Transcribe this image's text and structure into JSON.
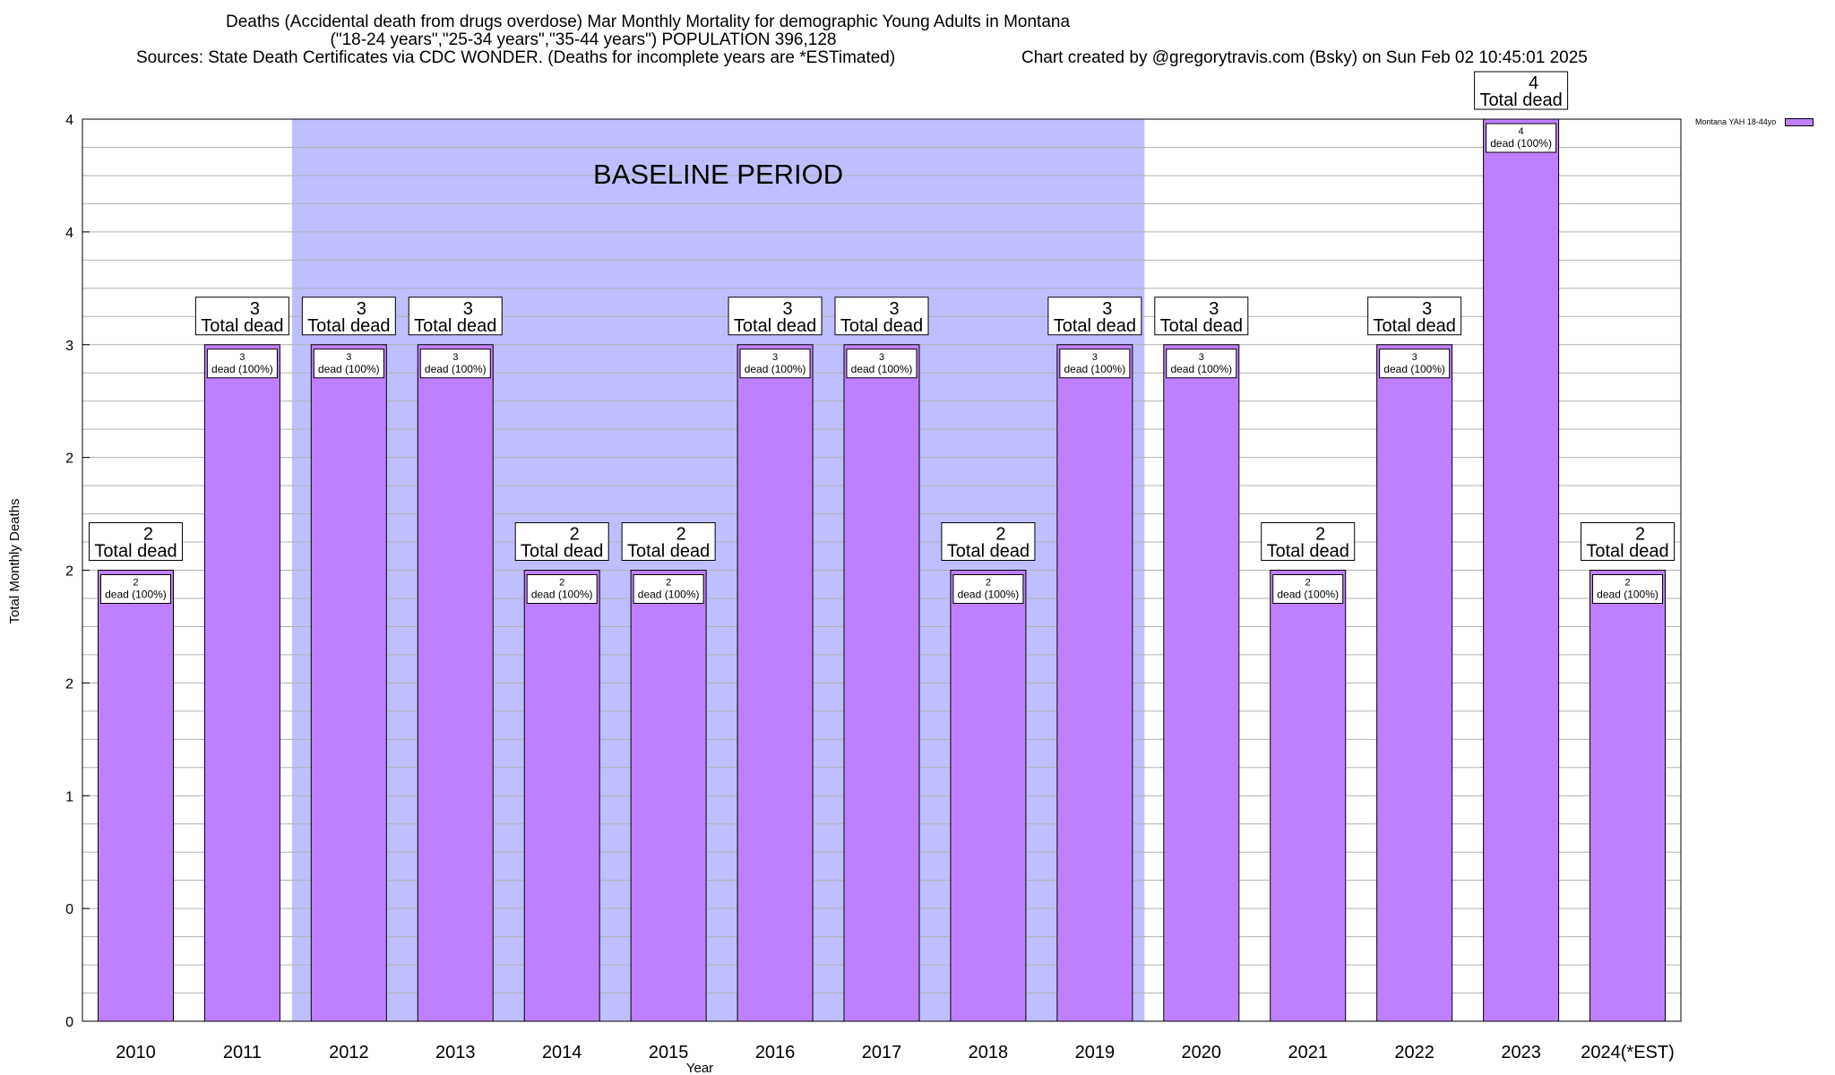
{
  "chart_data": {
    "type": "bar",
    "title_lines": [
      "Deaths (Accidental death from drugs overdose) Mar Monthly Mortality for demographic Young Adults in Montana",
      "(\"18-24 years\",\"25-34 years\",\"35-44 years\") POPULATION 396,128",
      "Sources: State Death Certificates via CDC WONDER. (Deaths for incomplete years are *ESTimated)",
      "Chart created by @gregorytravis.com (Bsky) on Sun Feb 02 10:45:01 2025"
    ],
    "xlabel": "Year",
    "ylabel": "Total Monthly Deaths",
    "categories": [
      "2010",
      "2011",
      "2012",
      "2013",
      "2014",
      "2015",
      "2016",
      "2017",
      "2018",
      "2019",
      "2020",
      "2021",
      "2022",
      "2023",
      "2024(*EST)"
    ],
    "series": [
      {
        "name": "Montana YAH 18-44yo",
        "values": [
          2,
          3,
          3,
          3,
          2,
          2,
          3,
          3,
          2,
          3,
          3,
          2,
          3,
          4,
          2
        ]
      }
    ],
    "ylim": [
      0,
      4
    ],
    "yticks": [
      0,
      0.5,
      1,
      1.5,
      2,
      2.5,
      3,
      3.5,
      4
    ],
    "ytick_labels": [
      "0",
      "0",
      "1",
      "2",
      "2",
      "2",
      "3",
      "4",
      "4"
    ],
    "grid": true,
    "legend_position": "top-right",
    "bar_color": "#bf80ff",
    "baseline": {
      "label": "BASELINE PERIOD",
      "from": "2012",
      "to": "2019",
      "color": "#bfbfff"
    },
    "top_labels": [
      {
        "count": "2",
        "text": "Total dead"
      },
      {
        "count": "3",
        "text": "Total dead"
      },
      {
        "count": "3",
        "text": "Total dead"
      },
      {
        "count": "3",
        "text": "Total dead"
      },
      {
        "count": "2",
        "text": "Total dead"
      },
      {
        "count": "2",
        "text": "Total dead"
      },
      {
        "count": "3",
        "text": "Total dead"
      },
      {
        "count": "3",
        "text": "Total dead"
      },
      {
        "count": "2",
        "text": "Total dead"
      },
      {
        "count": "3",
        "text": "Total dead"
      },
      {
        "count": "3",
        "text": "Total dead"
      },
      {
        "count": "2",
        "text": "Total dead"
      },
      {
        "count": "3",
        "text": "Total dead"
      },
      {
        "count": "4",
        "text": "Total dead"
      },
      {
        "count": "2",
        "text": "Total dead"
      }
    ],
    "inner_labels": [
      {
        "count": "2",
        "text": "dead (100%)"
      },
      {
        "count": "3",
        "text": "dead (100%)"
      },
      {
        "count": "3",
        "text": "dead (100%)"
      },
      {
        "count": "3",
        "text": "dead (100%)"
      },
      {
        "count": "2",
        "text": "dead (100%)"
      },
      {
        "count": "2",
        "text": "dead (100%)"
      },
      {
        "count": "3",
        "text": "dead (100%)"
      },
      {
        "count": "3",
        "text": "dead (100%)"
      },
      {
        "count": "2",
        "text": "dead (100%)"
      },
      {
        "count": "3",
        "text": "dead (100%)"
      },
      {
        "count": "3",
        "text": "dead (100%)"
      },
      {
        "count": "2",
        "text": "dead (100%)"
      },
      {
        "count": "3",
        "text": "dead (100%)"
      },
      {
        "count": "4",
        "text": "dead (100%)"
      },
      {
        "count": "2",
        "text": "dead (100%)"
      }
    ]
  }
}
